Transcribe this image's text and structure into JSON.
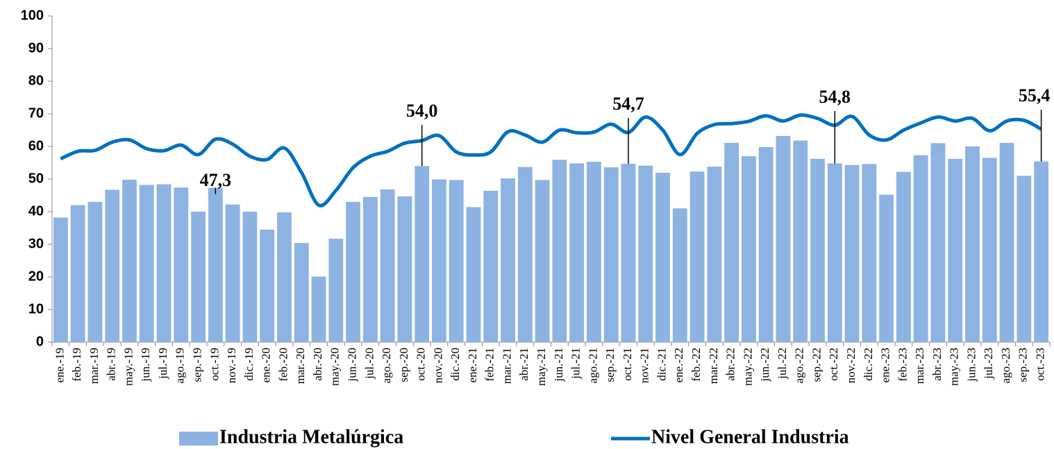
{
  "chart_data": {
    "type": "bar-line",
    "categories": [
      "ene.-19",
      "feb.-19",
      "mar.-19",
      "abr.-19",
      "may.-19",
      "jun.-19",
      "jul.-19",
      "ago.-19",
      "sep.-19",
      "oct.-19",
      "nov.-19",
      "dic.-19",
      "ene.-20",
      "feb.-20",
      "mar.-20",
      "abr.-20",
      "may.-20",
      "jun.-20",
      "jul.-20",
      "ago.-20",
      "sep.-20",
      "oct.-20",
      "nov.-20",
      "dic.-20",
      "ene.-21",
      "feb.-21",
      "mar.-21",
      "abr.-21",
      "may.-21",
      "jun.-21",
      "jul.-21",
      "ago.-21",
      "sep.-21",
      "oct.-21",
      "nov.-21",
      "dic.-21",
      "ene.-22",
      "feb.-22",
      "mar.-22",
      "abr.-22",
      "may.-22",
      "jun.-22",
      "jul.-22",
      "ago.-22",
      "sep.-22",
      "oct.-22",
      "nov.-22",
      "dic.-22",
      "ene.-23",
      "feb.-23",
      "mar.-23",
      "abr.-23",
      "may.-23",
      "jun.-23",
      "jul.-23",
      "ago.-23",
      "sep.-23",
      "oct.-23"
    ],
    "series": [
      {
        "name": "Industria Metalúrgica",
        "type": "bar",
        "color": "#8db3e2",
        "values": [
          38.2,
          42,
          43,
          46.7,
          49.8,
          48.2,
          48.4,
          47.4,
          40,
          47.3,
          42.2,
          40,
          34.5,
          39.8,
          30.4,
          20.1,
          31.7,
          43,
          44.5,
          46.8,
          44.7,
          54.0,
          49.9,
          49.7,
          41.4,
          46.4,
          50.2,
          53.7,
          49.7,
          55.9,
          54.8,
          55.3,
          53.6,
          54.7,
          54.1,
          51.9,
          41,
          52.3,
          53.8,
          61.1,
          57,
          59.8,
          63.2,
          61.8,
          56.2,
          54.8,
          54.3,
          54.6,
          45.2,
          52.2,
          57.3,
          61,
          56.2,
          60,
          56.5,
          61.1,
          51,
          55.4
        ],
        "value_labels": [
          null,
          null,
          null,
          null,
          null,
          null,
          null,
          null,
          null,
          "47,3",
          null,
          null,
          null,
          null,
          null,
          null,
          null,
          null,
          null,
          null,
          null,
          "54,0",
          null,
          null,
          null,
          null,
          null,
          null,
          null,
          null,
          null,
          null,
          null,
          "54,7",
          null,
          null,
          null,
          null,
          null,
          null,
          null,
          null,
          null,
          null,
          null,
          "54,8",
          null,
          null,
          null,
          null,
          null,
          null,
          null,
          null,
          null,
          null,
          null,
          "55,4"
        ]
      },
      {
        "name": "Nivel General Industria",
        "type": "line",
        "color": "#0070c0",
        "values": [
          56.2,
          58.5,
          58.8,
          61.3,
          62,
          59.3,
          58.7,
          60.4,
          57.5,
          62.2,
          60.7,
          57,
          56,
          59.5,
          52,
          42,
          46.5,
          53.5,
          57,
          58.5,
          61,
          61.8,
          63.3,
          58.3,
          57.4,
          58.3,
          64.5,
          63.5,
          61.3,
          65,
          64.2,
          64.4,
          66.8,
          64.3,
          69,
          65,
          57.5,
          64,
          66.7,
          67,
          67.7,
          69.4,
          67.8,
          69.6,
          68.6,
          66.5,
          69.2,
          63.5,
          62,
          65,
          67.2,
          69,
          67.8,
          68.6,
          64.8,
          67.8,
          68,
          65.3
        ]
      }
    ],
    "ylim": [
      0,
      100
    ],
    "yticks": [
      0,
      10,
      20,
      30,
      40,
      50,
      60,
      70,
      80,
      90,
      100
    ]
  }
}
